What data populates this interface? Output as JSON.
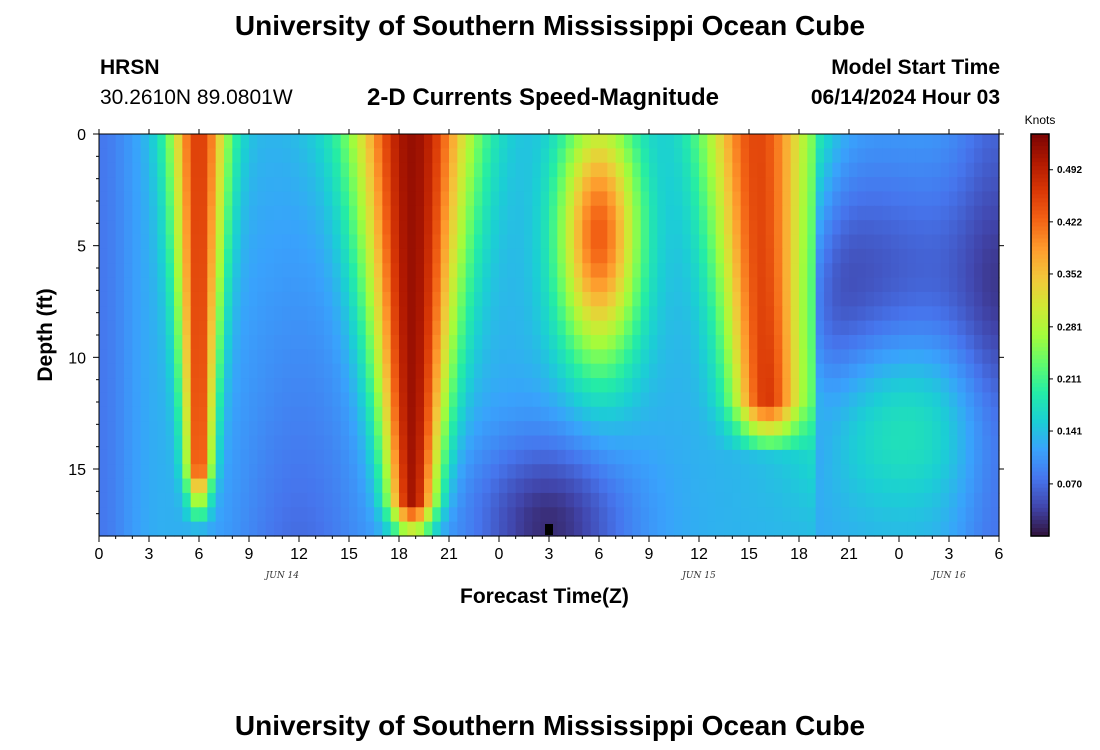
{
  "header": {
    "title": "University of Southern Mississippi Ocean Cube",
    "station_id": "HRSN",
    "coordinates": "30.2610N  89.0801W",
    "subtitle": "2-D Currents Speed-Magnitude",
    "model_start_label": "Model Start Time",
    "model_start_value": "06/14/2024 Hour 03"
  },
  "footer": {
    "title": "University of Southern Mississippi Ocean Cube"
  },
  "chart_data": {
    "type": "heatmap",
    "title": "2-D Currents Speed-Magnitude",
    "xlabel": "Forecast Time(Z)",
    "ylabel": "Depth (ft)",
    "x_ticks": [
      "0",
      "3",
      "6",
      "9",
      "12",
      "15",
      "18",
      "21",
      "0",
      "3",
      "6",
      "9",
      "12",
      "15",
      "18",
      "21",
      "0",
      "3",
      "6"
    ],
    "x_range_hours": [
      0,
      54
    ],
    "date_labels": [
      {
        "label": "JUN 14",
        "hour": 11
      },
      {
        "label": "JUN 15",
        "hour": 36
      },
      {
        "label": "JUN 16",
        "hour": 51
      }
    ],
    "y_ticks": [
      "0",
      "5",
      "10",
      "15"
    ],
    "y_range_ft": [
      0,
      18
    ],
    "y_inverted": true,
    "colorbar": {
      "unit": "Knots",
      "ticks": [
        "0.492",
        "0.422",
        "0.352",
        "0.281",
        "0.211",
        "0.141",
        "0.070"
      ],
      "tick_values": [
        0.492,
        0.422,
        0.352,
        0.281,
        0.211,
        0.141,
        0.07
      ],
      "range": [
        0.0,
        0.54
      ],
      "colormap": [
        "#30123b",
        "#4145ab",
        "#4675ed",
        "#39a2fc",
        "#1bcfd4",
        "#24eca6",
        "#61fc6c",
        "#a4fc3b",
        "#d1e834",
        "#f3c63a",
        "#fe9b2d",
        "#f36315",
        "#d93806",
        "#b11901",
        "#7a0403"
      ]
    },
    "speed_ridges": [
      {
        "hour": 6.0,
        "peak_knots": 0.46,
        "note": "surface to ~15 ft"
      },
      {
        "hour": 18.8,
        "peak_knots": 0.52,
        "note": "surface to ~16.5 ft"
      },
      {
        "hour": 30.0,
        "peak_knots": 0.43,
        "note": "near surface to ~9 ft"
      },
      {
        "hour": 39.5,
        "peak_knots": 0.45,
        "note": "surface to ~12 ft"
      }
    ],
    "minimum_region": {
      "hour": 27.0,
      "depth_ft": 17.5,
      "min_knots": 0.02
    }
  }
}
